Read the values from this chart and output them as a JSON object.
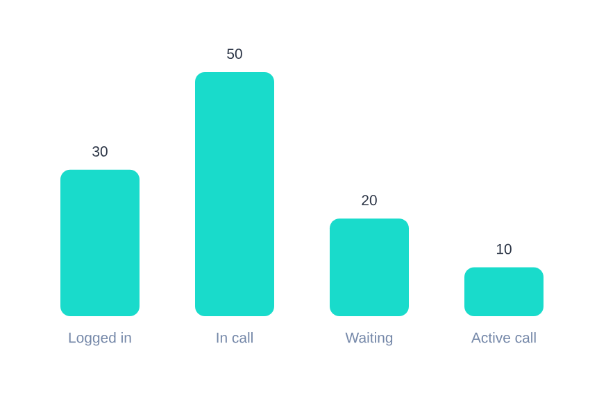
{
  "chart_data": {
    "type": "bar",
    "categories": [
      "Logged in",
      "In call",
      "Waiting",
      "Active call"
    ],
    "values": [
      30,
      50,
      20,
      10
    ],
    "color": "#19dbcb",
    "data_labels": true
  }
}
